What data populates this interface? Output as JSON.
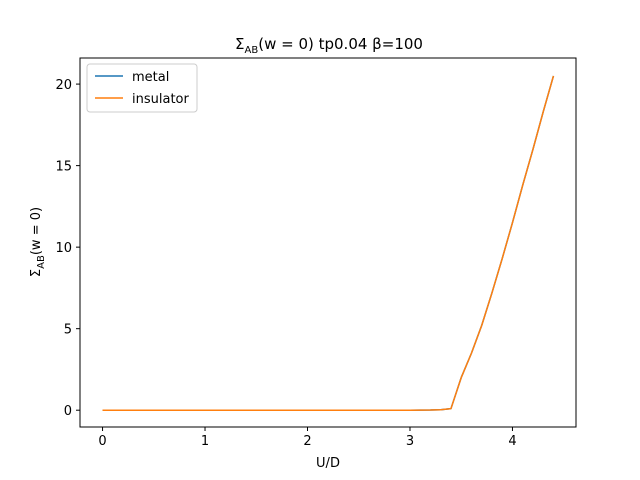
{
  "chart_data": {
    "type": "line",
    "title_parts": [
      "Σ",
      "AB",
      "(w = 0) tp0.04 β=100"
    ],
    "xlabel": "U/D",
    "ylabel_parts": [
      "Σ",
      "AB",
      "(w = 0)"
    ],
    "xlim": [
      -0.22,
      4.62
    ],
    "ylim": [
      -1.03,
      21.6
    ],
    "xticks": [
      0,
      1,
      2,
      3,
      4
    ],
    "yticks": [
      0,
      5,
      10,
      15,
      20
    ],
    "grid": false,
    "legend_position": "top-left",
    "series": [
      {
        "name": "metal",
        "color": "#1f77b4",
        "x": [
          0,
          0.2,
          0.4,
          0.6,
          0.8,
          1.0,
          1.2,
          1.4,
          1.6,
          1.8,
          2.0,
          2.2,
          2.4,
          2.6,
          2.8,
          3.0,
          3.2,
          3.3,
          3.4,
          3.5,
          3.6,
          3.7,
          3.8,
          3.9,
          4.0,
          4.1,
          4.2,
          4.3,
          4.4
        ],
        "y": [
          0,
          0,
          0,
          0,
          0,
          0,
          0,
          0,
          0,
          0,
          0,
          0,
          0,
          0,
          0,
          0,
          0.01,
          0.03,
          0.1,
          2.0,
          3.5,
          5.2,
          7.2,
          9.3,
          11.5,
          13.8,
          16.0,
          18.3,
          20.5
        ]
      },
      {
        "name": "insulator",
        "color": "#ff7f0e",
        "x": [
          0,
          0.2,
          0.4,
          0.6,
          0.8,
          1.0,
          1.2,
          1.4,
          1.6,
          1.8,
          2.0,
          2.2,
          2.4,
          2.6,
          2.8,
          3.0,
          3.2,
          3.3,
          3.4,
          3.5,
          3.6,
          3.7,
          3.8,
          3.9,
          4.0,
          4.1,
          4.2,
          4.3,
          4.4
        ],
        "y": [
          0,
          0,
          0,
          0,
          0,
          0,
          0,
          0,
          0,
          0,
          0,
          0,
          0,
          0,
          0,
          0,
          0.01,
          0.03,
          0.1,
          2.0,
          3.5,
          5.2,
          7.2,
          9.3,
          11.5,
          13.8,
          16.0,
          18.3,
          20.5
        ]
      }
    ]
  }
}
